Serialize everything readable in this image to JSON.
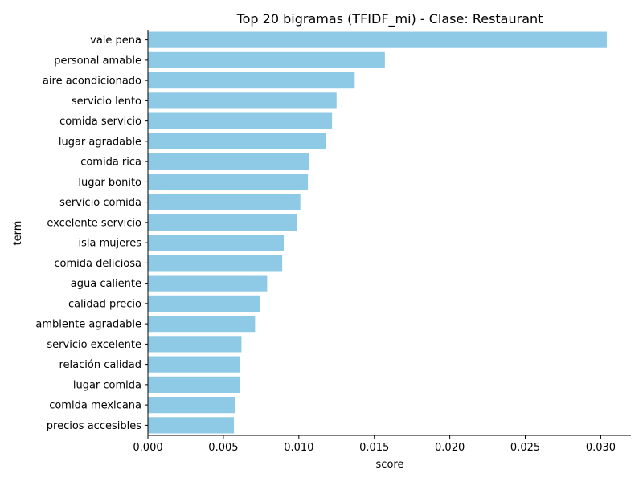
{
  "chart_data": {
    "type": "bar",
    "orientation": "horizontal",
    "title": "Top 20 bigramas (TFIDF_mi) - Clase: Restaurant",
    "xlabel": "score",
    "ylabel": "term",
    "xlim": [
      0,
      0.032
    ],
    "xticks": [
      "0.000",
      "0.005",
      "0.010",
      "0.015",
      "0.020",
      "0.025",
      "0.030"
    ],
    "xtick_values": [
      0,
      0.005,
      0.01,
      0.015,
      0.02,
      0.025,
      0.03
    ],
    "grid": false,
    "bar_color": "#8ecae6",
    "categories": [
      "vale pena",
      "personal amable",
      "aire acondicionado",
      "servicio lento",
      "comida servicio",
      "lugar agradable",
      "comida rica",
      "lugar bonito",
      "servicio comida",
      "excelente servicio",
      "isla mujeres",
      "comida deliciosa",
      "agua caliente",
      "calidad precio",
      "ambiente agradable",
      "servicio excelente",
      "relación calidad",
      "lugar comida",
      "comida mexicana",
      "precios accesibles"
    ],
    "values": [
      0.0304,
      0.0157,
      0.0137,
      0.0125,
      0.0122,
      0.0118,
      0.0107,
      0.0106,
      0.0101,
      0.0099,
      0.009,
      0.0089,
      0.0079,
      0.0074,
      0.0071,
      0.0062,
      0.0061,
      0.0061,
      0.0058,
      0.0057
    ]
  }
}
